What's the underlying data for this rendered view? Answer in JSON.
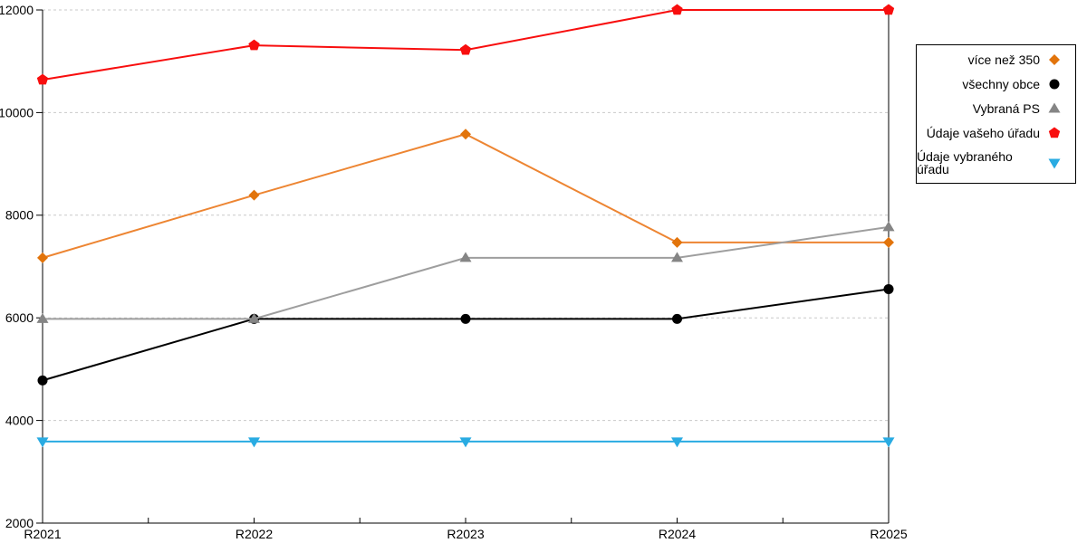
{
  "chart_data": {
    "type": "line",
    "categories": [
      "R2021",
      "R2022",
      "R2023",
      "R2024",
      "R2025"
    ],
    "series": [
      {
        "name": "více než 350",
        "marker": "diamond",
        "line_color": "#ED8532",
        "marker_color": "#E2740B",
        "values": [
          7170,
          8390,
          9580,
          7470,
          7470
        ]
      },
      {
        "name": "všechny obce",
        "marker": "circle",
        "line_color": "#000000",
        "marker_color": "#000000",
        "values": [
          4780,
          5980,
          5980,
          5980,
          6560
        ]
      },
      {
        "name": "Vybraná PS",
        "marker": "triangle-up",
        "line_color": "#9E9E9E",
        "marker_color": "#858585",
        "values": [
          5980,
          5980,
          7170,
          7170,
          7770
        ]
      },
      {
        "name": "Údaje vašeho úřadu",
        "marker": "pentagon",
        "line_color": "#F80E0E",
        "marker_color": "#F80E0E",
        "values": [
          10640,
          11310,
          11220,
          12000,
          12000
        ]
      },
      {
        "name": "Údaje vybraného úřadu",
        "marker": "triangle-down",
        "line_color": "#29ABE2",
        "marker_color": "#29ABE2",
        "values": [
          3590,
          3590,
          3590,
          3590,
          3590
        ]
      }
    ],
    "title": "",
    "xlabel": "",
    "ylabel": "",
    "ylim": [
      2000,
      12000
    ],
    "y_tick_step": 2000,
    "y_tick_labels": [
      "2000",
      "4000",
      "6000",
      "8000",
      "10000",
      "12000"
    ],
    "grid": "horizontal-dashed",
    "grid_color": "#C9C9C9",
    "axis_color": "#000000",
    "legend_position": "right"
  }
}
